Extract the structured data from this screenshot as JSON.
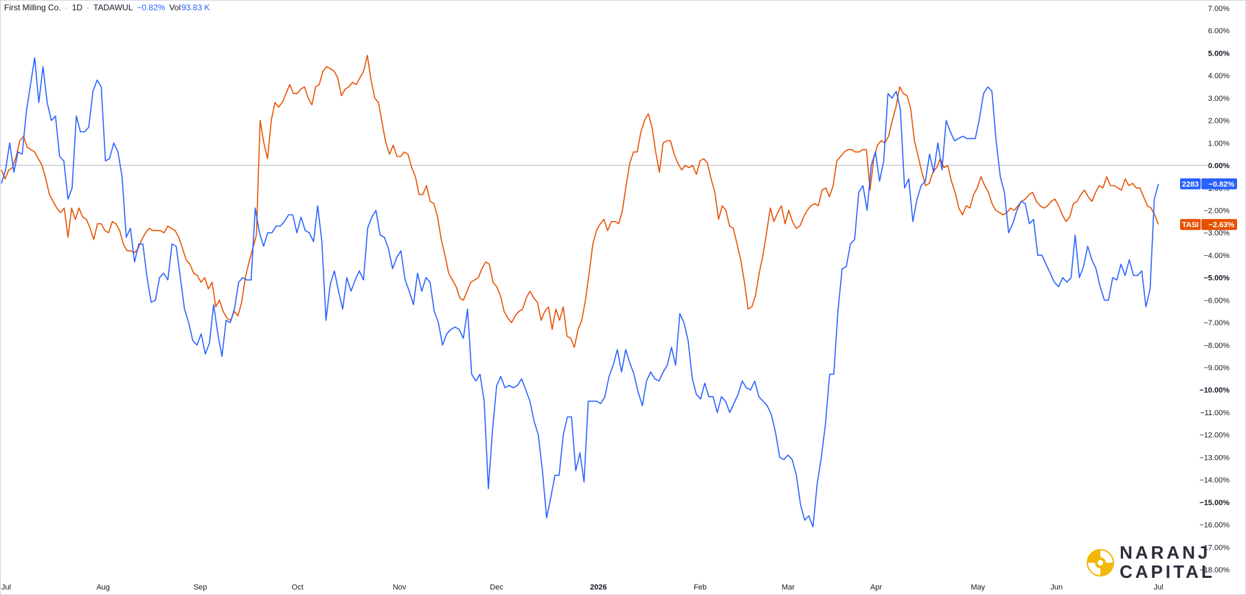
{
  "header": {
    "title": "First Milling Co.",
    "separator": "·",
    "interval": "1D",
    "exchange": "TADAWUL",
    "change": "−0.82%",
    "vol_label": "Vol",
    "vol_value": "93.83 K"
  },
  "logo": {
    "line1": "NARANJ",
    "line2": "CAPITAL"
  },
  "colors": {
    "series_2283": "#2962ff",
    "series_tasi": "#e65100",
    "zero_line": "#b2b5be",
    "badge_blue": "#2962ff",
    "badge_orange": "#e65100"
  },
  "chart_data": {
    "type": "line",
    "y_unit": "%",
    "ylim": [
      -18.5,
      7.2
    ],
    "y_ticks": [
      "7.00%",
      "6.00%",
      "5.00%",
      "4.00%",
      "3.00%",
      "2.00%",
      "1.00%",
      "0.00%",
      "−1.00%",
      "−2.00%",
      "−3.00%",
      "−4.00%",
      "−5.00%",
      "−6.00%",
      "−7.00%",
      "−8.00%",
      "−9.00%",
      "−10.00%",
      "−11.00%",
      "−12.00%",
      "−13.00%",
      "−14.00%",
      "−15.00%",
      "−16.00%",
      "−17.00%",
      "−18.00%"
    ],
    "y_tick_values": [
      7,
      6,
      5,
      4,
      3,
      2,
      1,
      0,
      -1,
      -2,
      -3,
      -4,
      -5,
      -6,
      -7,
      -8,
      -9,
      -10,
      -11,
      -12,
      -13,
      -14,
      -15,
      -16,
      -17,
      -18
    ],
    "y_ticks_bold": [
      5,
      0,
      -5,
      -10,
      -15
    ],
    "x_ticks": [
      {
        "label": "Jul",
        "t": 0,
        "bold": false
      },
      {
        "label": "Aug",
        "t": 22,
        "bold": false
      },
      {
        "label": "Sep",
        "t": 43,
        "bold": false
      },
      {
        "label": "Oct",
        "t": 64,
        "bold": false
      },
      {
        "label": "Nov",
        "t": 86,
        "bold": false
      },
      {
        "label": "Dec",
        "t": 107,
        "bold": false
      },
      {
        "label": "2026",
        "t": 129,
        "bold": true
      },
      {
        "label": "Feb",
        "t": 151,
        "bold": false
      },
      {
        "label": "Mar",
        "t": 170,
        "bold": false
      },
      {
        "label": "Apr",
        "t": 189,
        "bold": false
      },
      {
        "label": "May",
        "t": 211,
        "bold": false
      },
      {
        "label": "Jun",
        "t": 228,
        "bold": false
      },
      {
        "label": "Jul",
        "t": 250,
        "bold": false
      }
    ],
    "t_range": [
      0,
      252
    ],
    "series": [
      {
        "name": "2283",
        "last_label": "−0.82%",
        "color": "#2962ff",
        "values": [
          -0.8,
          -0.2,
          1.0,
          -0.3,
          0.6,
          0.5,
          2.4,
          3.6,
          4.8,
          2.8,
          4.4,
          2.8,
          2.0,
          2.2,
          0.4,
          0.2,
          -1.5,
          -1.0,
          2.2,
          1.5,
          1.5,
          1.7,
          3.3,
          3.8,
          3.5,
          0.2,
          0.3,
          1.0,
          0.6,
          -0.5,
          -3.2,
          -2.8,
          -4.3,
          -3.5,
          -3.5,
          -5.0,
          -6.1,
          -6.0,
          -5.0,
          -4.8,
          -5.1,
          -3.5,
          -3.6,
          -5.0,
          -6.4,
          -7.0,
          -7.8,
          -8.0,
          -7.5,
          -8.4,
          -7.9,
          -6.2,
          -7.5,
          -8.5,
          -6.9,
          -7.0,
          -6.4,
          -5.2,
          -5.0,
          -5.1,
          -5.1,
          -1.9,
          -3.0,
          -3.6,
          -3.0,
          -3.0,
          -2.7,
          -2.7,
          -2.5,
          -2.2,
          -2.2,
          -3.0,
          -2.3,
          -2.9,
          -3.0,
          -3.4,
          -1.8,
          -3.4,
          -6.9,
          -5.3,
          -4.7,
          -5.6,
          -6.4,
          -5.0,
          -5.6,
          -5.1,
          -4.7,
          -5.1,
          -2.8,
          -2.3,
          -2.0,
          -3.1,
          -3.2,
          -3.7,
          -4.6,
          -4.1,
          -3.8,
          -5.1,
          -5.6,
          -6.2,
          -4.8,
          -5.6,
          -5.0,
          -5.2,
          -6.5,
          -7.0,
          -8.0,
          -7.5,
          -7.3,
          -7.2,
          -7.3,
          -7.7,
          -6.4,
          -9.3,
          -9.6,
          -9.3,
          -10.5,
          -14.4,
          -11.8,
          -9.8,
          -9.4,
          -9.9,
          -9.8,
          -9.9,
          -9.8,
          -9.5,
          -10.0,
          -10.5,
          -11.4,
          -12.0,
          -13.6,
          -15.7,
          -14.8,
          -13.8,
          -13.8,
          -12.0,
          -11.2,
          -11.2,
          -13.6,
          -12.8,
          -14.1,
          -10.5,
          -10.5,
          -10.5,
          -10.6,
          -10.3,
          -9.4,
          -8.9,
          -8.2,
          -9.2,
          -8.2,
          -8.8,
          -9.3,
          -10.1,
          -10.7,
          -9.6,
          -9.2,
          -9.5,
          -9.6,
          -9.2,
          -8.9,
          -8.1,
          -8.9,
          -6.6,
          -7.0,
          -7.8,
          -9.5,
          -10.2,
          -10.4,
          -9.7,
          -10.3,
          -10.3,
          -11.0,
          -10.3,
          -10.5,
          -11.0,
          -10.6,
          -10.2,
          -9.6,
          -9.9,
          -10.0,
          -9.6,
          -10.3,
          -10.5,
          -10.7,
          -11.1,
          -11.9,
          -13.0,
          -13.1,
          -12.9,
          -13.1,
          -13.8,
          -15.1,
          -15.8,
          -15.6,
          -16.1,
          -14.2,
          -13.0,
          -11.5,
          -9.3,
          -9.3,
          -6.5,
          -4.6,
          -4.5,
          -3.5,
          -3.3,
          -1.2,
          -0.9,
          -2.0,
          0.0,
          0.6,
          -0.7,
          0.2,
          3.2,
          3.0,
          3.3,
          2.5,
          -1.0,
          -0.6,
          -2.5,
          -1.5,
          -0.9,
          -0.7,
          0.5,
          -0.3,
          1.0,
          -0.2,
          2.0,
          1.5,
          1.1,
          1.2,
          1.3,
          1.2,
          1.2,
          1.2,
          2.1,
          3.2,
          3.5,
          3.3,
          1.1,
          -0.5,
          -1.2,
          -3.0,
          -2.6,
          -2.0,
          -1.6,
          -1.7,
          -2.6,
          -2.4,
          -4.0,
          -4.0,
          -4.4,
          -4.8,
          -5.2,
          -5.4,
          -5.0,
          -5.2,
          -5.0,
          -3.1,
          -5.0,
          -4.5,
          -3.6,
          -4.2,
          -4.6,
          -5.4,
          -6.0,
          -6.0,
          -5.0,
          -5.1,
          -4.4,
          -4.9,
          -4.2,
          -4.9,
          -4.9,
          -4.7,
          -6.3,
          -5.5,
          -1.5,
          -0.82
        ]
      },
      {
        "name": "TASI",
        "last_label": "−2.63%",
        "color": "#e65100",
        "values": [
          -0.2,
          -0.6,
          -0.2,
          -0.1,
          0.4,
          1.1,
          1.3,
          0.8,
          0.7,
          0.6,
          0.3,
          0.0,
          -0.6,
          -1.3,
          -1.6,
          -1.9,
          -2.1,
          -1.9,
          -3.2,
          -1.9,
          -2.4,
          -1.9,
          -2.3,
          -2.4,
          -2.8,
          -3.3,
          -2.6,
          -2.6,
          -2.9,
          -3.0,
          -2.5,
          -2.6,
          -2.9,
          -3.5,
          -3.8,
          -3.8,
          -3.9,
          -3.7,
          -3.3,
          -3.0,
          -2.8,
          -2.9,
          -2.9,
          -2.9,
          -3.0,
          -2.7,
          -2.8,
          -2.9,
          -3.2,
          -3.7,
          -4.2,
          -4.4,
          -4.8,
          -4.9,
          -5.2,
          -5.0,
          -5.5,
          -5.2,
          -6.3,
          -6.0,
          -6.5,
          -6.8,
          -6.9,
          -6.5,
          -6.7,
          -6.1,
          -5.0,
          -4.3,
          -3.7,
          -3.1,
          2.0,
          1.0,
          0.3,
          2.0,
          2.8,
          2.6,
          2.8,
          3.2,
          3.6,
          3.2,
          3.2,
          3.4,
          3.5,
          3.0,
          2.7,
          3.5,
          3.6,
          4.2,
          4.4,
          4.3,
          4.2,
          3.9,
          3.1,
          3.4,
          3.5,
          3.7,
          3.6,
          3.9,
          4.2,
          4.9,
          3.8,
          3.0,
          2.8,
          1.9,
          1.0,
          0.5,
          0.9,
          0.4,
          0.4,
          0.6,
          0.5,
          -0.1,
          -0.5,
          -1.3,
          -1.3,
          -0.9,
          -1.6,
          -1.7,
          -2.3,
          -3.3,
          -4.0,
          -4.8,
          -5.1,
          -5.4,
          -5.9,
          -6.0,
          -5.6,
          -5.2,
          -5.1,
          -5.0,
          -4.6,
          -4.3,
          -4.4,
          -5.2,
          -5.4,
          -5.8,
          -6.5,
          -6.8,
          -7.0,
          -6.7,
          -6.5,
          -6.4,
          -5.9,
          -5.6,
          -5.9,
          -6.1,
          -6.9,
          -6.5,
          -6.3,
          -7.3,
          -6.4,
          -6.9,
          -6.3,
          -7.6,
          -7.7,
          -8.1,
          -7.3,
          -6.9,
          -6.0,
          -4.8,
          -3.5,
          -2.9,
          -2.6,
          -2.4,
          -2.9,
          -2.5,
          -2.5,
          -2.6,
          -2.0,
          -0.9,
          0.1,
          0.6,
          0.6,
          1.5,
          2.0,
          2.3,
          1.7,
          0.6,
          -0.3,
          1.0,
          1.1,
          1.1,
          0.5,
          0.1,
          -0.2,
          0.0,
          -0.1,
          0.0,
          -0.4,
          0.2,
          0.3,
          0.1,
          -0.6,
          -1.2,
          -2.4,
          -1.8,
          -2.0,
          -2.7,
          -2.8,
          -3.5,
          -4.2,
          -5.2,
          -6.4,
          -6.3,
          -5.8,
          -4.8,
          -4.0,
          -3.0,
          -1.9,
          -2.5,
          -2.1,
          -1.8,
          -2.6,
          -2.0,
          -2.5,
          -2.8,
          -2.7,
          -2.3,
          -2.0,
          -1.8,
          -1.7,
          -1.8,
          -1.1,
          -1.0,
          -1.4,
          -0.9,
          0.2,
          0.4,
          0.6,
          0.7,
          0.7,
          0.6,
          0.6,
          0.7,
          0.7,
          -1.1,
          0.3,
          0.9,
          1.1,
          1.0,
          1.3,
          2.0,
          2.6,
          3.5,
          3.2,
          3.1,
          2.5,
          1.1,
          0.4,
          -0.3,
          -0.9,
          -0.8,
          -0.3,
          -0.1,
          0.3,
          -0.1,
          0.0,
          -0.7,
          -1.2,
          -1.9,
          -2.2,
          -1.8,
          -1.9,
          -1.3,
          -1.0,
          -0.5,
          -0.9,
          -1.2,
          -1.7,
          -2.0,
          -2.1,
          -2.2,
          -2.1,
          -1.9,
          -2.0,
          -1.8,
          -1.6,
          -1.5,
          -1.3,
          -1.2,
          -1.6,
          -1.8,
          -1.9,
          -1.8,
          -1.6,
          -1.5,
          -1.8,
          -2.2,
          -2.5,
          -2.3,
          -1.7,
          -1.6,
          -1.3,
          -1.1,
          -1.4,
          -1.6,
          -1.2,
          -0.9,
          -1.0,
          -0.5,
          -0.9,
          -0.9,
          -1.0,
          -1.1,
          -0.6,
          -0.9,
          -0.8,
          -1.0,
          -1.0,
          -1.4,
          -1.8,
          -1.9,
          -2.2,
          -2.63
        ]
      }
    ]
  }
}
